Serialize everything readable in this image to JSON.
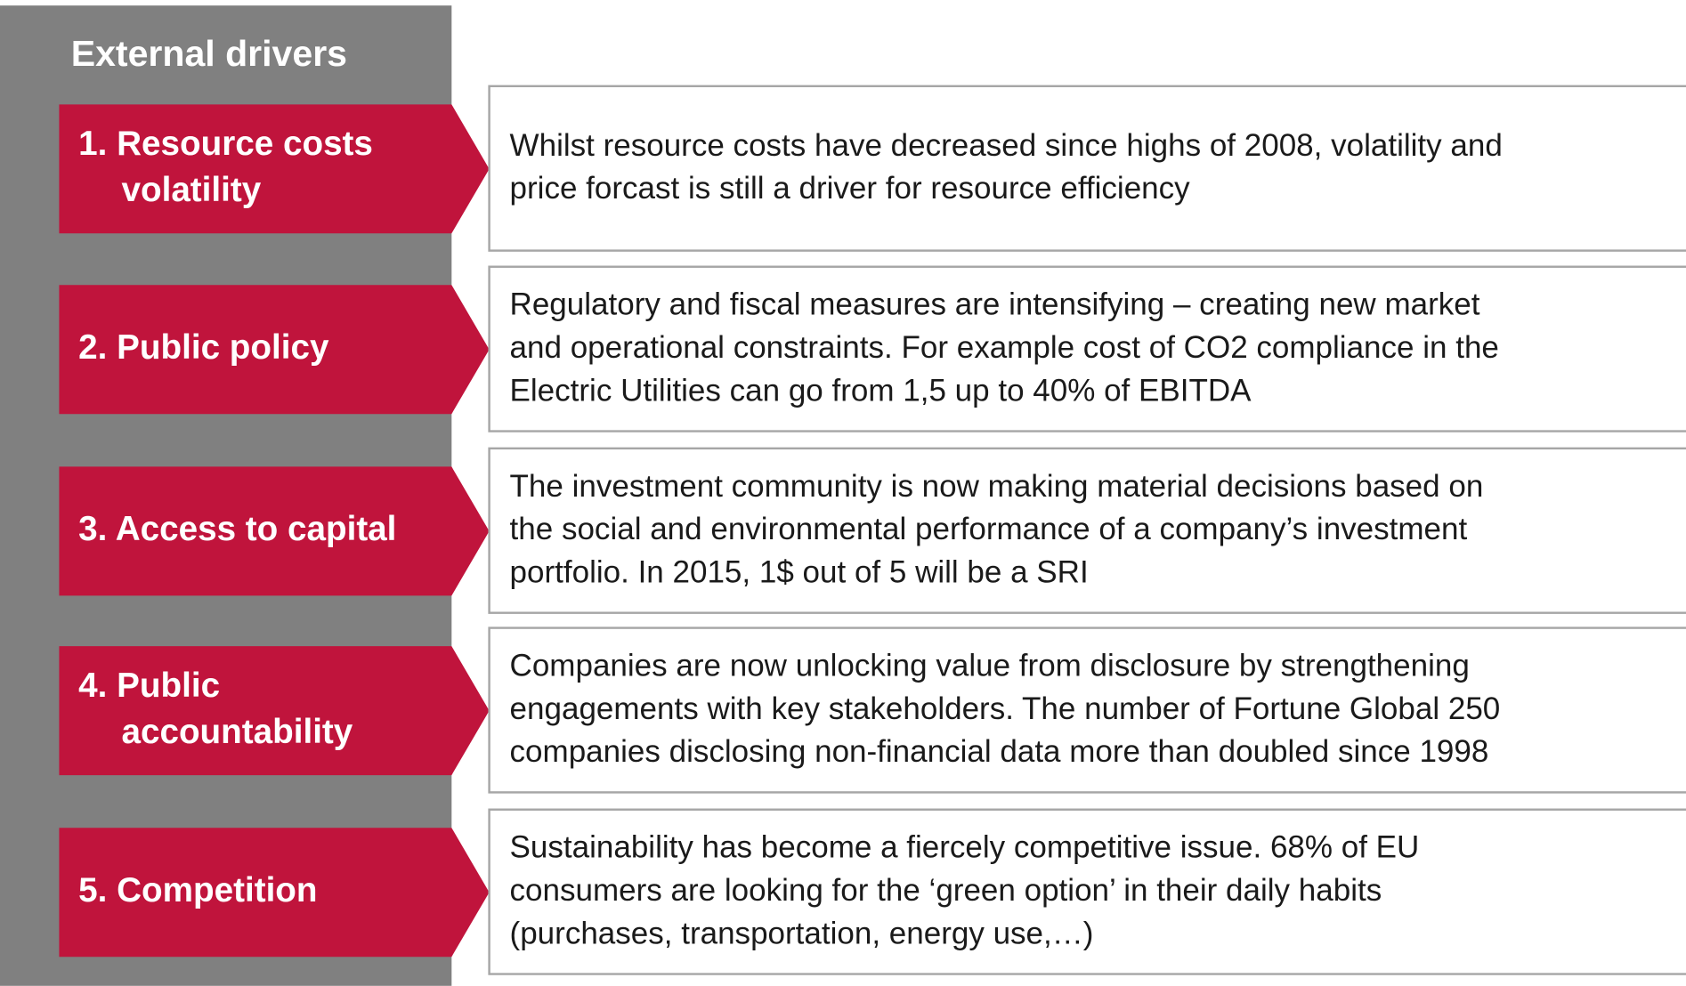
{
  "header": {
    "title": "External drivers"
  },
  "drivers": [
    {
      "label_lines": [
        "1. Resource costs",
        "volatility"
      ],
      "description_lines": [
        "Whilst resource costs have decreased since highs of 2008, volatility and",
        "price forcast is still a driver for resource efficiency"
      ]
    },
    {
      "label_lines": [
        "2. Public policy"
      ],
      "description_lines": [
        "Regulatory and fiscal measures are intensifying – creating new market",
        "and operational constraints. For example cost of CO2 compliance in the",
        "Electric Utilities can go from 1,5 up to 40% of EBITDA"
      ]
    },
    {
      "label_lines": [
        "3. Access to capital"
      ],
      "description_lines": [
        "The investment community is now making material decisions based on",
        "the social and environmental performance of a company’s investment",
        "portfolio. In 2015, 1$ out of 5 will be a SRI"
      ]
    },
    {
      "label_lines": [
        "4. Public",
        "accountability"
      ],
      "description_lines": [
        "Companies are now unlocking value from disclosure by strengthening",
        "engagements with key stakeholders. The number of Fortune Global 250",
        "companies disclosing non-financial data more than doubled since 1998"
      ]
    },
    {
      "label_lines": [
        "5. Competition"
      ],
      "description_lines": [
        "Sustainability has become a fiercely competitive issue. 68% of EU",
        "consumers are looking for the ‘green option’ in their daily habits",
        "(purchases, transportation, energy use,…)"
      ]
    }
  ]
}
